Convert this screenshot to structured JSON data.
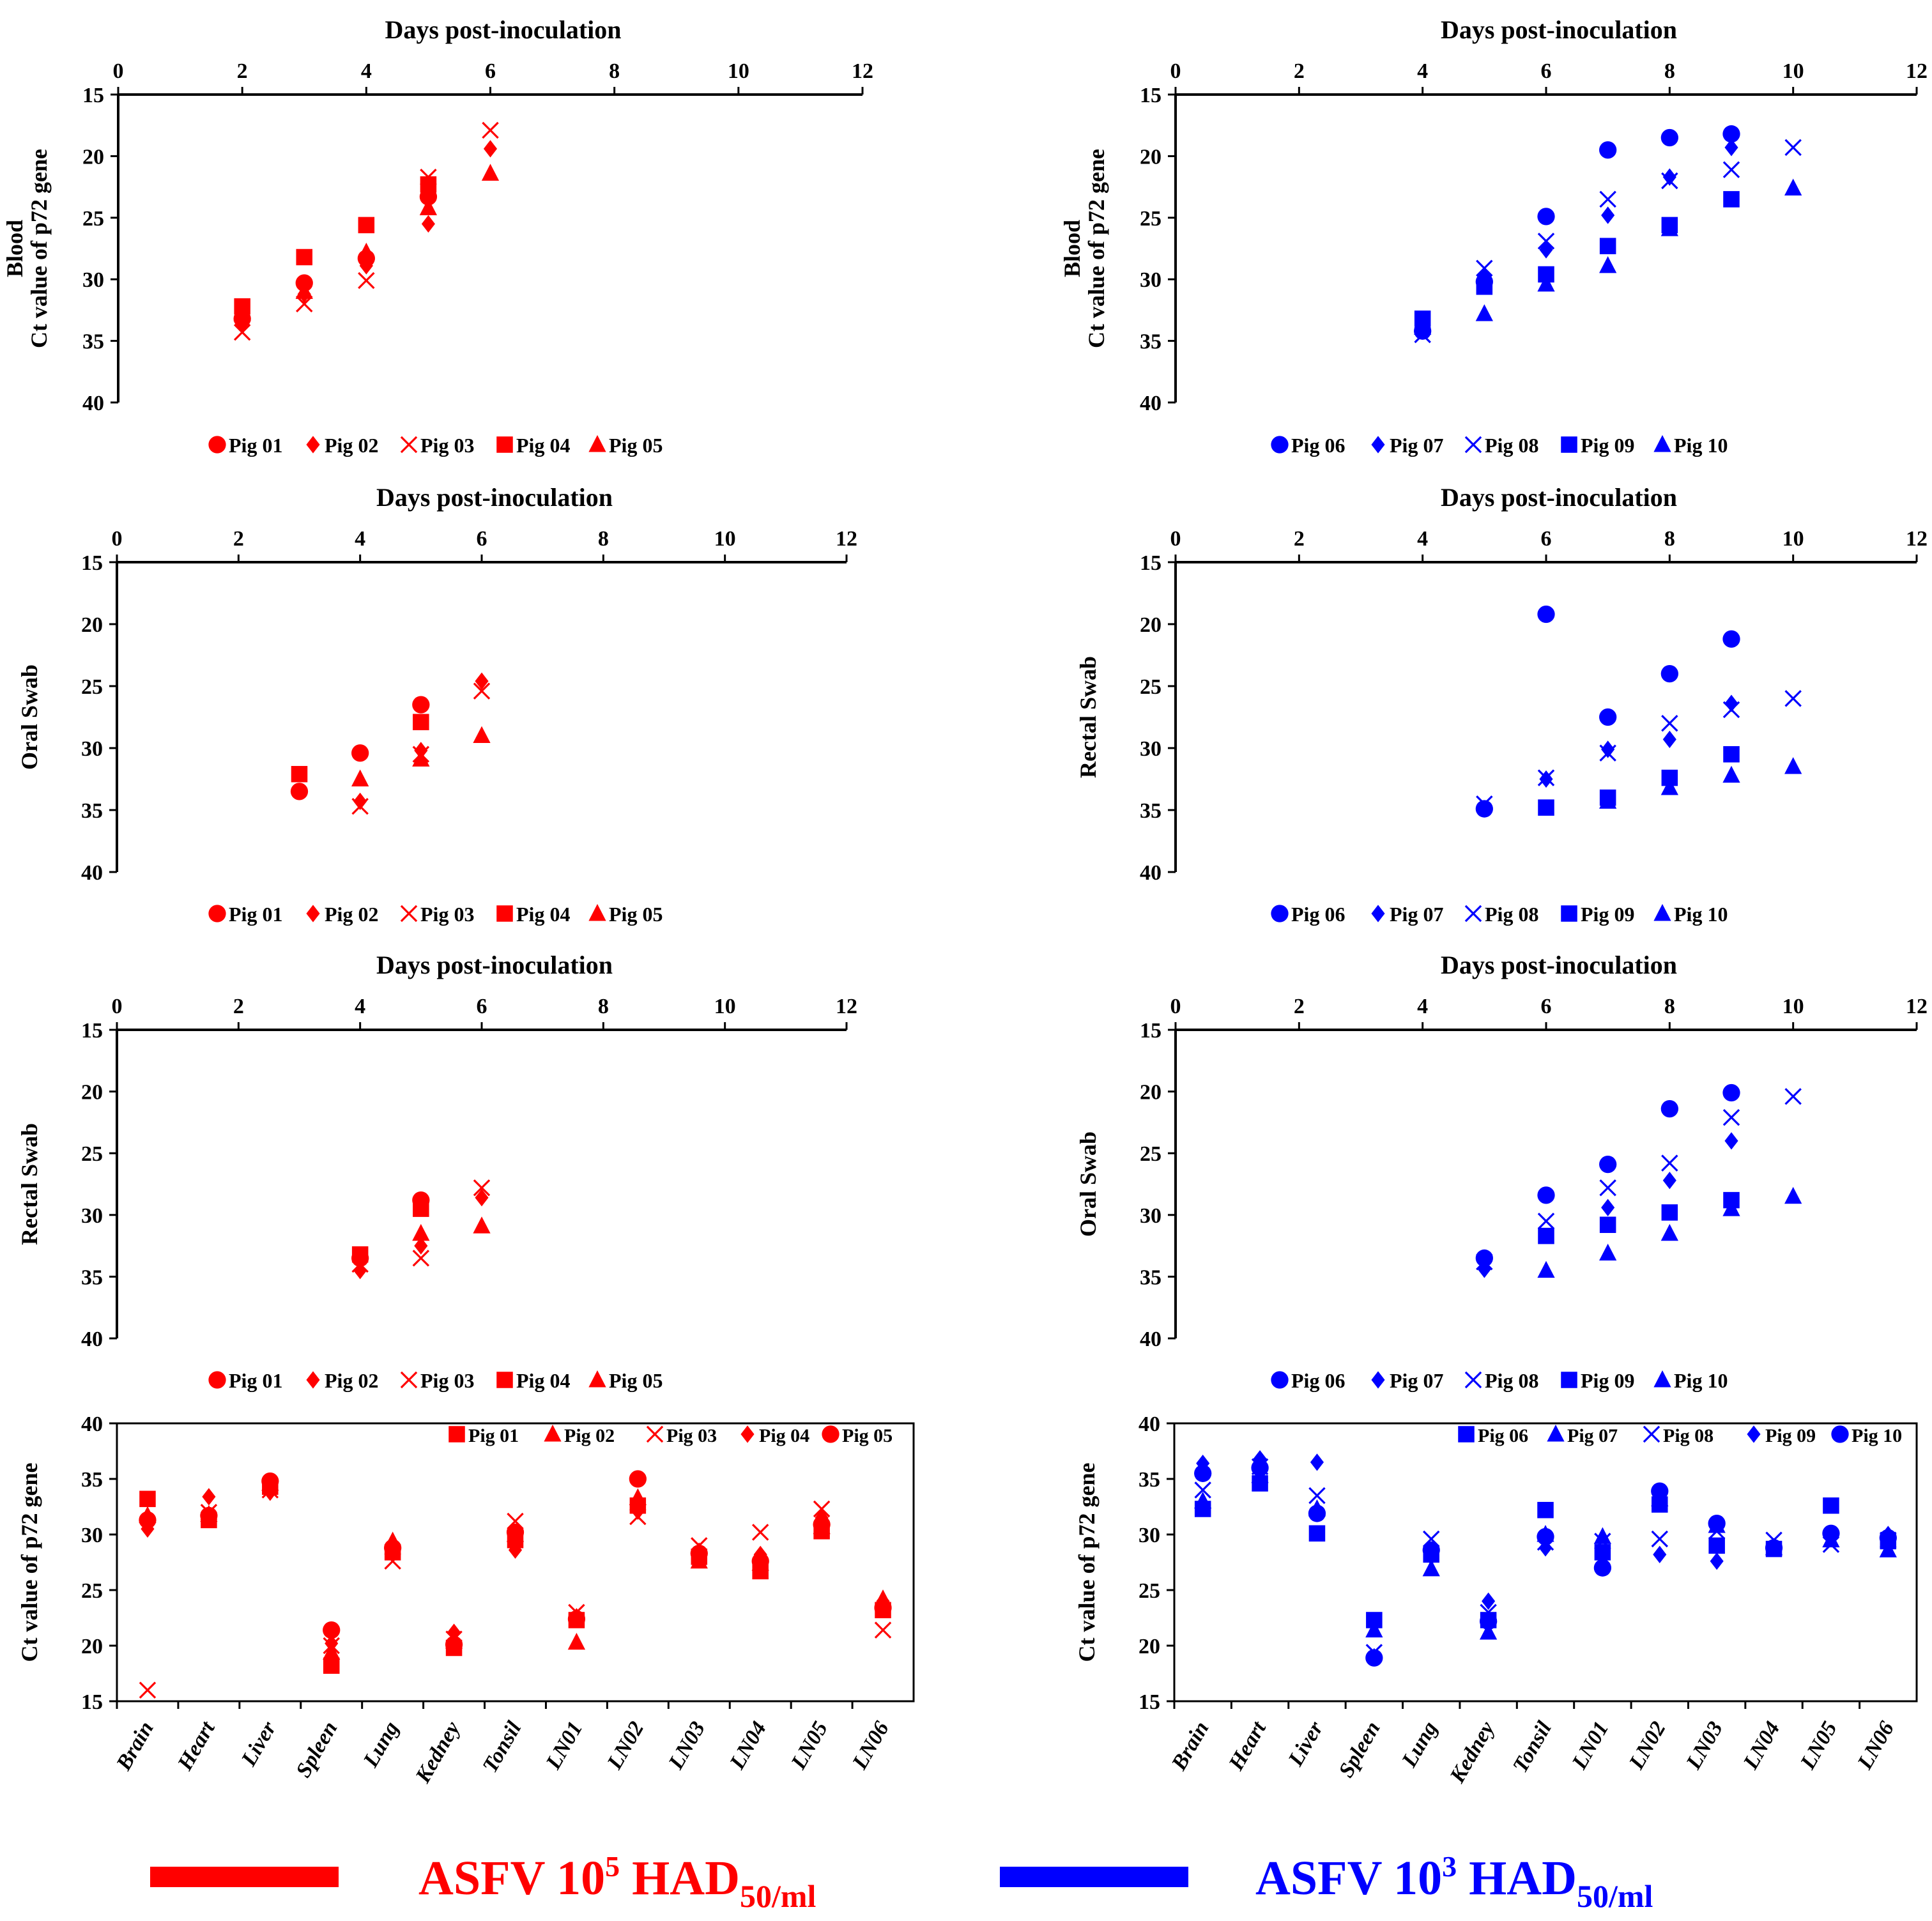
{
  "colors": {
    "group_a": "#ff0000",
    "group_b": "#0000ff",
    "axis": "#000000"
  },
  "chart_data": [
    {
      "id": "a1",
      "type": "scatter",
      "group": "a",
      "title": "Days post-inoculation",
      "xlabel": "Days post-inoculation",
      "ylabel": [
        "Blood",
        "Ct value of p72 gene"
      ],
      "xlim": [
        0,
        12
      ],
      "ylim": [
        15,
        40
      ],
      "y_inverted": true,
      "xticks": [
        "0",
        "2",
        "4",
        "6",
        "8",
        "10",
        "12"
      ],
      "yticks": [
        "15",
        "20",
        "25",
        "30",
        "35",
        "40"
      ],
      "legend": "bottom",
      "series": [
        {
          "name": "Pig 01",
          "marker": "circle",
          "x": [
            2,
            3,
            4,
            5
          ],
          "y": [
            33.2,
            30.3,
            28.3,
            23.3
          ]
        },
        {
          "name": "Pig 02",
          "marker": "diamond",
          "x": [
            2,
            3,
            4,
            5,
            6
          ],
          "y": [
            33.6,
            31.2,
            28.9,
            25.5,
            19.4
          ]
        },
        {
          "name": "Pig 03",
          "marker": "x",
          "x": [
            2,
            3,
            4,
            5,
            6
          ],
          "y": [
            34.3,
            32.0,
            30.1,
            21.7,
            17.9
          ]
        },
        {
          "name": "Pig 04",
          "marker": "square",
          "x": [
            2,
            3,
            4,
            5
          ],
          "y": [
            32.2,
            28.2,
            25.6,
            22.3
          ]
        },
        {
          "name": "Pig 05",
          "marker": "triangle",
          "x": [
            2,
            3,
            4,
            5,
            6
          ],
          "y": [
            32.8,
            31.0,
            27.8,
            24.2,
            21.4
          ]
        }
      ]
    },
    {
      "id": "b1",
      "type": "scatter",
      "group": "b",
      "title": "Days post-inoculation",
      "xlabel": "Days post-inoculation",
      "ylabel": [
        "Blood",
        "Ct value of p72 gene"
      ],
      "xlim": [
        0,
        12
      ],
      "ylim": [
        15,
        40
      ],
      "y_inverted": true,
      "xticks": [
        "0",
        "2",
        "4",
        "6",
        "8",
        "10",
        "12"
      ],
      "yticks": [
        "15",
        "20",
        "25",
        "30",
        "35",
        "40"
      ],
      "legend": "bottom",
      "series": [
        {
          "name": "Pig 06",
          "marker": "circle",
          "x": [
            4,
            5,
            6,
            7,
            8,
            9
          ],
          "y": [
            34.2,
            30.2,
            24.9,
            19.5,
            18.5,
            18.2
          ]
        },
        {
          "name": "Pig 07",
          "marker": "diamond",
          "x": [
            4,
            5,
            6,
            7,
            8,
            9
          ],
          "y": [
            33.8,
            29.8,
            27.6,
            24.8,
            21.7,
            19.3
          ]
        },
        {
          "name": "Pig 08",
          "marker": "x",
          "x": [
            4,
            5,
            6,
            7,
            8,
            9,
            10
          ],
          "y": [
            34.5,
            29.1,
            26.9,
            23.5,
            22.0,
            21.1,
            19.3
          ]
        },
        {
          "name": "Pig 09",
          "marker": "square",
          "x": [
            4,
            5,
            6,
            7,
            8,
            9
          ],
          "y": [
            33.2,
            30.6,
            29.6,
            27.3,
            25.6,
            23.5
          ]
        },
        {
          "name": "Pig 10",
          "marker": "triangle",
          "x": [
            4,
            5,
            6,
            7,
            8,
            10
          ],
          "y": [
            33.9,
            32.8,
            30.4,
            28.9,
            25.9,
            22.6
          ]
        }
      ]
    },
    {
      "id": "a2",
      "type": "scatter",
      "group": "a",
      "title": "Days post-inoculation",
      "xlabel": "Days post-inoculation",
      "ylabel": [
        "Oral Swab"
      ],
      "xlim": [
        0,
        12
      ],
      "ylim": [
        15,
        40
      ],
      "y_inverted": true,
      "xticks": [
        "0",
        "2",
        "4",
        "6",
        "8",
        "10",
        "12"
      ],
      "yticks": [
        "15",
        "20",
        "25",
        "30",
        "35",
        "40"
      ],
      "legend": "bottom",
      "series": [
        {
          "name": "Pig 01",
          "marker": "circle",
          "x": [
            3,
            4,
            5
          ],
          "y": [
            33.5,
            30.4,
            26.5
          ]
        },
        {
          "name": "Pig 02",
          "marker": "diamond",
          "x": [
            4,
            5,
            6
          ],
          "y": [
            34.3,
            30.2,
            24.6
          ]
        },
        {
          "name": "Pig 03",
          "marker": "x",
          "x": [
            4,
            5,
            6
          ],
          "y": [
            34.7,
            30.5,
            25.4
          ]
        },
        {
          "name": "Pig 04",
          "marker": "square",
          "x": [
            3,
            5
          ],
          "y": [
            32.1,
            27.9
          ]
        },
        {
          "name": "Pig 05",
          "marker": "triangle",
          "x": [
            4,
            5,
            6
          ],
          "y": [
            32.5,
            30.9,
            29.0
          ]
        }
      ]
    },
    {
      "id": "b2",
      "type": "scatter",
      "group": "b",
      "title": "Days post-inoculation",
      "xlabel": "Days post-inoculation",
      "ylabel": [
        "Rectal Swab"
      ],
      "xlim": [
        0,
        12
      ],
      "ylim": [
        15,
        40
      ],
      "y_inverted": true,
      "xticks": [
        "0",
        "2",
        "4",
        "6",
        "8",
        "10",
        "12"
      ],
      "yticks": [
        "15",
        "20",
        "25",
        "30",
        "35",
        "40"
      ],
      "legend": "bottom",
      "series": [
        {
          "name": "Pig 06",
          "marker": "circle",
          "x": [
            5,
            6,
            7,
            8,
            9
          ],
          "y": [
            34.9,
            19.2,
            27.5,
            24.0,
            21.2
          ]
        },
        {
          "name": "Pig 07",
          "marker": "diamond",
          "x": [
            6,
            7,
            8,
            9
          ],
          "y": [
            32.5,
            30.1,
            29.3,
            26.4
          ]
        },
        {
          "name": "Pig 08",
          "marker": "x",
          "x": [
            5,
            6,
            7,
            8,
            9,
            10
          ],
          "y": [
            34.5,
            32.4,
            30.4,
            28.0,
            26.9,
            26.0
          ]
        },
        {
          "name": "Pig 09",
          "marker": "square",
          "x": [
            6,
            7,
            8,
            9
          ],
          "y": [
            34.8,
            34.0,
            32.4,
            30.5
          ]
        },
        {
          "name": "Pig 10",
          "marker": "triangle",
          "x": [
            7,
            8,
            9,
            10
          ],
          "y": [
            34.3,
            33.2,
            32.2,
            31.5
          ]
        }
      ]
    },
    {
      "id": "a3",
      "type": "scatter",
      "group": "a",
      "title": "Days post-inoculation",
      "xlabel": "Days post-inoculation",
      "ylabel": [
        "Rectal Swab"
      ],
      "xlim": [
        0,
        12
      ],
      "ylim": [
        15,
        40
      ],
      "y_inverted": true,
      "xticks": [
        "0",
        "2",
        "4",
        "6",
        "8",
        "10",
        "12"
      ],
      "yticks": [
        "15",
        "20",
        "25",
        "30",
        "35",
        "40"
      ],
      "legend": "bottom",
      "series": [
        {
          "name": "Pig 01",
          "marker": "circle",
          "x": [
            4,
            5
          ],
          "y": [
            33.5,
            28.8
          ]
        },
        {
          "name": "Pig 02",
          "marker": "diamond",
          "x": [
            4,
            5,
            6
          ],
          "y": [
            34.5,
            32.5,
            28.6
          ]
        },
        {
          "name": "Pig 03",
          "marker": "x",
          "x": [
            4,
            5,
            6
          ],
          "y": [
            34.0,
            33.5,
            27.8
          ]
        },
        {
          "name": "Pig 04",
          "marker": "square",
          "x": [
            4,
            5
          ],
          "y": [
            33.2,
            29.5
          ]
        },
        {
          "name": "Pig 05",
          "marker": "triangle",
          "x": [
            5,
            6
          ],
          "y": [
            31.5,
            30.9
          ]
        }
      ]
    },
    {
      "id": "b3",
      "type": "scatter",
      "group": "b",
      "title": "Days post-inoculation",
      "xlabel": "Days post-inoculation",
      "ylabel": [
        "Oral Swab"
      ],
      "xlim": [
        0,
        12
      ],
      "ylim": [
        15,
        40
      ],
      "y_inverted": true,
      "xticks": [
        "0",
        "2",
        "4",
        "6",
        "8",
        "10",
        "12"
      ],
      "yticks": [
        "15",
        "20",
        "25",
        "30",
        "35",
        "40"
      ],
      "legend": "bottom",
      "series": [
        {
          "name": "Pig 06",
          "marker": "circle",
          "x": [
            5,
            6,
            7,
            8,
            9
          ],
          "y": [
            33.5,
            28.4,
            25.9,
            21.4,
            20.1
          ]
        },
        {
          "name": "Pig 07",
          "marker": "diamond",
          "x": [
            5,
            7,
            8,
            9
          ],
          "y": [
            34.4,
            29.4,
            27.2,
            24.0
          ]
        },
        {
          "name": "Pig 08",
          "marker": "x",
          "x": [
            5,
            6,
            7,
            8,
            9,
            10
          ],
          "y": [
            33.8,
            30.5,
            27.8,
            25.8,
            22.1,
            20.4
          ]
        },
        {
          "name": "Pig 09",
          "marker": "square",
          "x": [
            6,
            7,
            8,
            9
          ],
          "y": [
            31.7,
            30.8,
            29.8,
            28.8
          ]
        },
        {
          "name": "Pig 10",
          "marker": "triangle",
          "x": [
            6,
            7,
            8,
            9,
            10
          ],
          "y": [
            34.5,
            33.1,
            31.5,
            29.5,
            28.5
          ]
        }
      ]
    },
    {
      "id": "a4",
      "type": "scatter",
      "group": "a",
      "ylabel": [
        "Ct value of p72 gene"
      ],
      "ylim": [
        15,
        40
      ],
      "y_inverted": false,
      "categories": [
        "Brain",
        "Heart",
        "Liver",
        "Spleen",
        "Lung",
        "Kedney",
        "Tonsil",
        "LN01",
        "LN02",
        "LN03",
        "LN04",
        "LN05",
        "LN06"
      ],
      "yticks": [
        "15",
        "20",
        "25",
        "30",
        "35",
        "40"
      ],
      "legend": "top-right",
      "series": [
        {
          "name": "Pig 01",
          "marker": "square",
          "values": [
            33.2,
            31.3,
            34.3,
            18.2,
            28.4,
            19.8,
            29.5,
            22.3,
            32.6,
            28.0,
            26.7,
            30.3,
            23.2
          ]
        },
        {
          "name": "Pig 02",
          "marker": "triangle",
          "values": [
            31.7,
            31.8,
            34.6,
            19.4,
            29.4,
            20.4,
            30.0,
            20.3,
            33.3,
            27.6,
            27.4,
            30.7,
            24.2
          ]
        },
        {
          "name": "Pig 03",
          "marker": "x",
          "values": [
            16.0,
            32.0,
            34.0,
            20.0,
            27.6,
            20.6,
            31.2,
            23.0,
            31.6,
            29.0,
            30.2,
            32.3,
            21.4
          ]
        },
        {
          "name": "Pig 04",
          "marker": "diamond",
          "values": [
            30.5,
            33.4,
            33.8,
            20.2,
            28.5,
            21.2,
            28.6,
            22.6,
            32.1,
            28.5,
            28.2,
            31.5,
            24.0
          ]
        },
        {
          "name": "Pig 05",
          "marker": "circle",
          "values": [
            31.3,
            31.7,
            34.8,
            21.4,
            28.8,
            20.1,
            30.2,
            22.4,
            35.0,
            28.3,
            27.6,
            30.9,
            23.4
          ]
        }
      ]
    },
    {
      "id": "b4",
      "type": "scatter",
      "group": "b",
      "ylabel": [
        "Ct value of p72 gene"
      ],
      "ylim": [
        15,
        40
      ],
      "y_inverted": false,
      "categories": [
        "Brain",
        "Heart",
        "Liver",
        "Spleen",
        "Lung",
        "Kedney",
        "Tonsil",
        "LN01",
        "LN02",
        "LN03",
        "LN04",
        "LN05",
        "LN06"
      ],
      "yticks": [
        "15",
        "20",
        "25",
        "30",
        "35",
        "40"
      ],
      "legend": "top-right",
      "series": [
        {
          "name": "Pig 06",
          "marker": "square",
          "values": [
            32.3,
            34.6,
            30.1,
            22.3,
            28.2,
            22.3,
            32.2,
            28.4,
            32.7,
            29.0,
            28.7,
            32.6,
            29.4
          ]
        },
        {
          "name": "Pig 07",
          "marker": "triangle",
          "values": [
            33.0,
            35.3,
            32.3,
            21.4,
            26.9,
            21.2,
            30.0,
            29.8,
            33.2,
            30.8,
            28.8,
            29.5,
            28.6
          ]
        },
        {
          "name": "Pig 08",
          "marker": "x",
          "values": [
            34.0,
            36.1,
            33.5,
            19.4,
            29.6,
            23.0,
            29.3,
            29.4,
            29.6,
            30.3,
            29.5,
            29.1,
            29.5
          ]
        },
        {
          "name": "Pig 09",
          "marker": "diamond",
          "values": [
            36.4,
            36.8,
            36.5,
            19.0,
            28.0,
            24.0,
            28.8,
            28.0,
            28.2,
            27.6,
            28.9,
            29.8,
            30.0
          ]
        },
        {
          "name": "Pig 10",
          "marker": "circle",
          "values": [
            35.5,
            36.0,
            31.9,
            18.9,
            28.6,
            22.2,
            29.8,
            27.0,
            33.9,
            31.0,
            28.8,
            30.1,
            29.7
          ]
        }
      ]
    }
  ],
  "legend_bars": [
    {
      "group": "a",
      "prefix": "ASFV 10",
      "sup": "5",
      "mid": " HAD",
      "sub": "50/ml"
    },
    {
      "group": "b",
      "prefix": "ASFV 10",
      "sup": "3",
      "mid": " HAD",
      "sub": "50/ml"
    }
  ]
}
